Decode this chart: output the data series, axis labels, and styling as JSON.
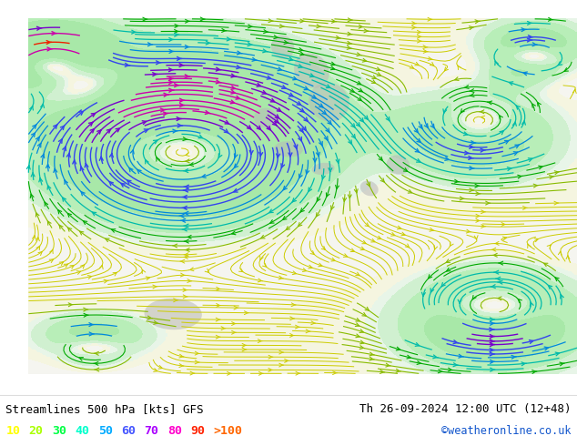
{
  "title_left": "Streamlines 500 hPa [kts] GFS",
  "title_right": "Th 26-09-2024 12:00 UTC (12+48)",
  "credit": "©weatheronline.co.uk",
  "legend_values": [
    "10",
    "20",
    "30",
    "40",
    "50",
    "60",
    "70",
    "80",
    "90",
    ">100"
  ],
  "strip_colors": [
    "#ffff00",
    "#aaff00",
    "#00ff44",
    "#00ffcc",
    "#00aaff",
    "#4455ff",
    "#aa00ff",
    "#ff00cc",
    "#ff2200",
    "#ff6600"
  ],
  "bg_ocean_color": "#f0f0f0",
  "bg_land_color": "#ccffcc",
  "bg_land2_color": "#aaffaa",
  "terrain_color": "#b8b8b8",
  "figsize": [
    6.34,
    4.9
  ],
  "dpi": 100,
  "speed_thresholds": [
    10,
    20,
    30,
    40,
    50,
    60,
    70,
    80,
    90,
    100
  ],
  "line_colors": {
    "10": "#ffff00",
    "20": "#aaff00",
    "30": "#00dd00",
    "40": "#00cccc",
    "50": "#0088ff",
    "60": "#4444ff",
    "70": "#8800cc",
    "80": "#cc00cc",
    "90": "#ff0066",
    "100": "#ff4400"
  }
}
